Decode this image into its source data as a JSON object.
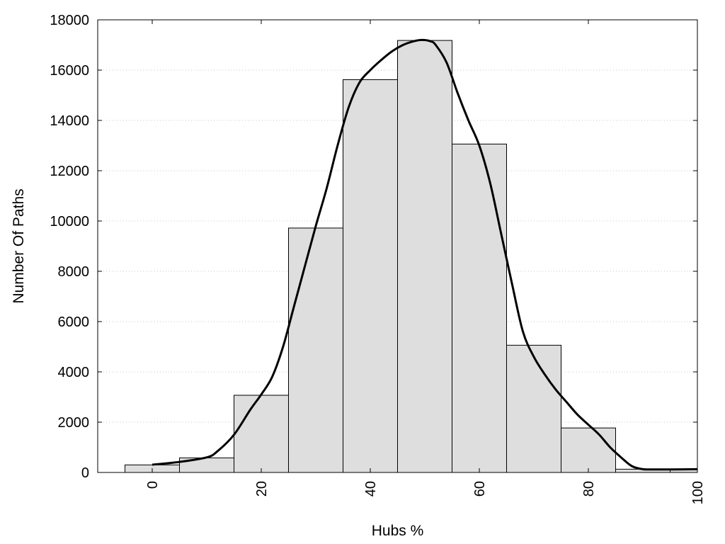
{
  "chart_data": {
    "type": "bar",
    "subtype": "histogram-with-density-curve",
    "xlabel": "Hubs %",
    "ylabel": "Number Of Paths",
    "xlim": [
      -10,
      100
    ],
    "ylim": [
      0,
      18000
    ],
    "xticks": [
      0,
      20,
      40,
      60,
      80,
      100
    ],
    "yticks": [
      0,
      2000,
      4000,
      6000,
      8000,
      10000,
      12000,
      14000,
      16000,
      18000
    ],
    "grid": "horizontal-dotted",
    "bin_width": 10,
    "bars": [
      {
        "x": 0,
        "value": 300
      },
      {
        "x": 10,
        "value": 580
      },
      {
        "x": 20,
        "value": 3070
      },
      {
        "x": 30,
        "value": 9720
      },
      {
        "x": 40,
        "value": 15620
      },
      {
        "x": 50,
        "value": 17180
      },
      {
        "x": 60,
        "value": 13060
      },
      {
        "x": 70,
        "value": 5060
      },
      {
        "x": 80,
        "value": 1770
      },
      {
        "x": 90,
        "value": 130
      },
      {
        "x": 100,
        "value": 130
      }
    ],
    "curve": {
      "x": [
        0,
        5,
        10,
        12,
        15,
        18,
        20,
        22,
        24,
        26,
        28,
        30,
        32,
        34,
        36,
        38,
        40,
        42,
        44,
        46,
        48,
        49.5,
        51,
        52,
        54,
        56,
        58,
        60,
        62,
        64,
        66,
        68,
        70,
        72,
        74,
        76,
        78,
        80,
        82,
        84,
        86,
        88,
        90,
        92,
        95,
        100
      ],
      "y": [
        310,
        420,
        600,
        850,
        1500,
        2500,
        3100,
        3800,
        5000,
        6600,
        8200,
        9800,
        11300,
        13000,
        14500,
        15500,
        16000,
        16400,
        16750,
        17000,
        17150,
        17200,
        17150,
        17000,
        16300,
        15100,
        14000,
        13000,
        11500,
        9500,
        7500,
        5600,
        4600,
        3900,
        3300,
        2800,
        2300,
        1900,
        1500,
        1000,
        600,
        250,
        130,
        120,
        120,
        130
      ]
    },
    "colors": {
      "bar_fill": "#dedede",
      "bar_stroke": "#000000",
      "curve": "#000000",
      "grid": "#c8c8c8"
    }
  }
}
